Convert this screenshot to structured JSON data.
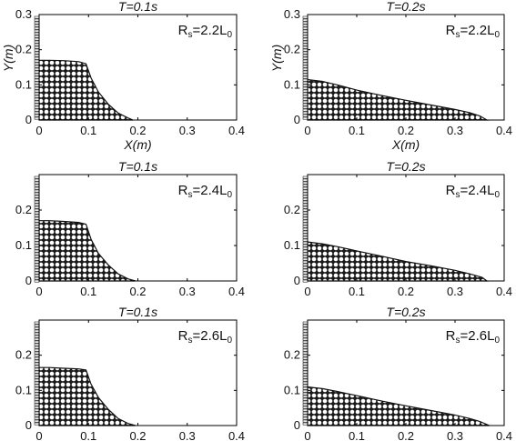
{
  "chart_data": [
    {
      "type": "area",
      "title": "T=0.1s",
      "annotation": {
        "main": "R",
        "sub1": "s",
        "mid": "=2.2L",
        "sub2": "0"
      },
      "xlabel": "X(m)",
      "ylabel": "Y(m)",
      "xlim": [
        0,
        0.4
      ],
      "ylim": [
        0,
        0.3
      ],
      "xticks": [
        "0",
        "0.1",
        "0.2",
        "0.3",
        "0.4"
      ],
      "yticks": [
        "0",
        "0.1",
        "0.2",
        "0.3"
      ],
      "series": [
        {
          "x": [
            0,
            0.02,
            0.05,
            0.08,
            0.095,
            0.105,
            0.12,
            0.14,
            0.16,
            0.18,
            0.19
          ],
          "y": [
            0.17,
            0.17,
            0.169,
            0.166,
            0.16,
            0.12,
            0.08,
            0.045,
            0.02,
            0.006,
            0.0
          ]
        }
      ]
    },
    {
      "type": "area",
      "title": "T=0.2s",
      "annotation": {
        "main": "R",
        "sub1": "s",
        "mid": "=2.2L",
        "sub2": "0"
      },
      "xlabel": "X(m)",
      "ylabel": "Y(m)",
      "xlim": [
        0,
        0.4
      ],
      "ylim": [
        0,
        0.3
      ],
      "xticks": [
        "0",
        "0.1",
        "0.2",
        "0.3",
        "0.4"
      ],
      "yticks": [
        "0",
        "0.1",
        "0.2",
        "0.3"
      ],
      "series": [
        {
          "x": [
            0,
            0.03,
            0.06,
            0.1,
            0.15,
            0.2,
            0.25,
            0.3,
            0.33,
            0.35,
            0.365
          ],
          "y": [
            0.115,
            0.11,
            0.1,
            0.085,
            0.07,
            0.056,
            0.043,
            0.03,
            0.021,
            0.012,
            0.0
          ]
        }
      ]
    },
    {
      "type": "area",
      "title": "T=0.1s",
      "annotation": {
        "main": "R",
        "sub1": "s",
        "mid": "=2.4L",
        "sub2": "0"
      },
      "xlabel": "",
      "ylabel": "",
      "xlim": [
        0,
        0.4
      ],
      "ylim": [
        0,
        0.3
      ],
      "xticks": [
        "0",
        "0.1",
        "0.2",
        "0.3",
        "0.4"
      ],
      "yticks": [
        "0",
        "0.1",
        "0.2"
      ],
      "series": [
        {
          "x": [
            0,
            0.02,
            0.05,
            0.08,
            0.095,
            0.105,
            0.12,
            0.14,
            0.16,
            0.18,
            0.195
          ],
          "y": [
            0.17,
            0.17,
            0.168,
            0.165,
            0.16,
            0.118,
            0.078,
            0.045,
            0.02,
            0.006,
            0.0
          ]
        }
      ]
    },
    {
      "type": "area",
      "title": "T=0.2s",
      "annotation": {
        "main": "R",
        "sub1": "s",
        "mid": "=2.4L",
        "sub2": "0"
      },
      "xlabel": "",
      "ylabel": "",
      "xlim": [
        0,
        0.4
      ],
      "ylim": [
        0,
        0.3
      ],
      "xticks": [
        "0",
        "0.1",
        "0.2",
        "0.3",
        "0.4"
      ],
      "yticks": [
        "0",
        "0.1",
        "0.2"
      ],
      "series": [
        {
          "x": [
            0,
            0.03,
            0.06,
            0.1,
            0.15,
            0.2,
            0.25,
            0.3,
            0.33,
            0.355,
            0.365
          ],
          "y": [
            0.11,
            0.105,
            0.097,
            0.085,
            0.07,
            0.055,
            0.043,
            0.03,
            0.02,
            0.01,
            0.0
          ]
        }
      ]
    },
    {
      "type": "area",
      "title": "T=0.1s",
      "annotation": {
        "main": "R",
        "sub1": "s",
        "mid": "=2.6L",
        "sub2": "0"
      },
      "xlabel": "",
      "ylabel": "",
      "xlim": [
        0,
        0.4
      ],
      "ylim": [
        0,
        0.3
      ],
      "xticks": [
        "0",
        "0.1",
        "0.2",
        "0.3",
        "0.4"
      ],
      "yticks": [
        "0",
        "0.1",
        "0.2"
      ],
      "series": [
        {
          "x": [
            0,
            0.02,
            0.05,
            0.08,
            0.095,
            0.105,
            0.12,
            0.14,
            0.16,
            0.18,
            0.195
          ],
          "y": [
            0.165,
            0.165,
            0.163,
            0.161,
            0.158,
            0.118,
            0.08,
            0.046,
            0.02,
            0.006,
            0.0
          ]
        }
      ]
    },
    {
      "type": "area",
      "title": "T=0.2s",
      "annotation": {
        "main": "R",
        "sub1": "s",
        "mid": "=2.6L",
        "sub2": "0"
      },
      "xlabel": "",
      "ylabel": "",
      "xlim": [
        0,
        0.4
      ],
      "ylim": [
        0,
        0.3
      ],
      "xticks": [
        "0",
        "0.1",
        "0.2",
        "0.3",
        "0.4"
      ],
      "yticks": [
        "0",
        "0.1",
        "0.2"
      ],
      "series": [
        {
          "x": [
            0,
            0.03,
            0.06,
            0.1,
            0.15,
            0.2,
            0.25,
            0.3,
            0.33,
            0.35,
            0.37
          ],
          "y": [
            0.11,
            0.105,
            0.097,
            0.085,
            0.07,
            0.056,
            0.043,
            0.03,
            0.02,
            0.012,
            0.0
          ]
        }
      ]
    }
  ]
}
